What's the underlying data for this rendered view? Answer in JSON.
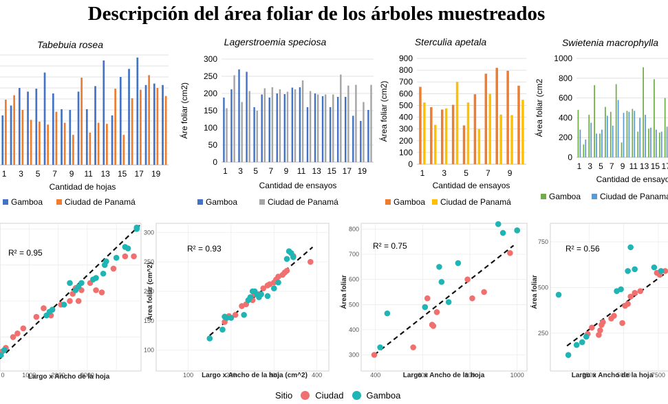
{
  "title": "Descripción del área foliar de los árboles muestreados",
  "colors": {
    "gamboa_blue": "#4472C4",
    "panama_orange": "#ED7D31",
    "panama_gray": "#A5A5A5",
    "panama_yellow": "#FFC000",
    "gamboa_green": "#70AD47",
    "panama_lightblue": "#5B9BD5",
    "ciudad_red": "#F07070",
    "gamboa_teal": "#1FB5B5"
  },
  "legend": {
    "title": "Sitio",
    "items": [
      "Ciudad",
      "Gamboa"
    ]
  },
  "chart_data": [
    {
      "type": "bar",
      "title": "Tabebuia rosea",
      "xlabel": "Cantidad de hojas",
      "ylabel": "",
      "ylim": [
        0,
        300
      ],
      "yticks": [],
      "xticklabels": [
        "1",
        "3",
        "5",
        "7",
        "9",
        "11",
        "13",
        "15",
        "17",
        "19"
      ],
      "categories": [
        1,
        2,
        3,
        4,
        5,
        6,
        7,
        8,
        9,
        10,
        11,
        12,
        13,
        14,
        15,
        16,
        17,
        18,
        19,
        20
      ],
      "series": [
        {
          "name": "Gamboa",
          "values": [
            135,
            162,
            210,
            200,
            208,
            252,
            195,
            152,
            150,
            200,
            152,
            215,
            285,
            135,
            240,
            262,
            293,
            218,
            222,
            218
          ]
        },
        {
          "name": "Ciudad de Panamá",
          "values": [
            178,
            190,
            150,
            123,
            118,
            110,
            145,
            115,
            82,
            238,
            88,
            115,
            112,
            208,
            82,
            182,
            205,
            245,
            210,
            188
          ]
        }
      ]
    },
    {
      "type": "bar",
      "title": "Lagerstroemia speciosa",
      "xlabel": "Cantidad de ensayos",
      "ylabel": "Áre foliar (cm2)",
      "ylim": [
        0,
        300
      ],
      "yticks": [
        0,
        50,
        100,
        150,
        200,
        250,
        300
      ],
      "xticklabels": [
        "1",
        "3",
        "5",
        "7",
        "9",
        "11",
        "13",
        "15",
        "17",
        "19"
      ],
      "categories": [
        1,
        2,
        3,
        4,
        5,
        6,
        7,
        8,
        9,
        10,
        11,
        12,
        13,
        14,
        15,
        16,
        17,
        18,
        19,
        20
      ],
      "series": [
        {
          "name": "Gamboa",
          "values": [
            188,
            212,
            270,
            263,
            160,
            197,
            188,
            200,
            198,
            217,
            218,
            160,
            200,
            192,
            160,
            190,
            190,
            135,
            120,
            152
          ]
        },
        {
          "name": "Ciudad de Panamá",
          "values": [
            157,
            253,
            175,
            207,
            150,
            215,
            218,
            212,
            205,
            212,
            238,
            207,
            197,
            197,
            197,
            255,
            223,
            225,
            175,
            225
          ]
        }
      ]
    },
    {
      "type": "bar",
      "title": "Sterculia apetala",
      "xlabel": "Cantidad de ensayos",
      "ylabel": "Área foliar (cm2)",
      "ylim": [
        0,
        900
      ],
      "yticks": [
        0,
        100,
        200,
        300,
        400,
        500,
        600,
        700,
        800,
        900
      ],
      "xticklabels": [
        "1",
        "3",
        "5",
        "7",
        "9"
      ],
      "categories": [
        1,
        2,
        3,
        4,
        5,
        6,
        7,
        8,
        9,
        10
      ],
      "series": [
        {
          "name": "Gamboa",
          "values": [
            658,
            485,
            465,
            505,
            330,
            595,
            770,
            820,
            795,
            668
          ]
        },
        {
          "name": "Ciudad de Panamá",
          "values": [
            525,
            335,
            475,
            700,
            525,
            300,
            598,
            422,
            418,
            548
          ]
        }
      ]
    },
    {
      "type": "bar",
      "title": "Swietenia macrophylla",
      "xlabel": "Cantidad de ensayo",
      "ylabel": "Área foliar (cm2",
      "ylim": [
        0,
        1000
      ],
      "yticks": [
        0,
        200,
        400,
        600,
        800,
        1000
      ],
      "xticklabels": [
        "1",
        "3",
        "5",
        "7",
        "9",
        "11",
        "13",
        "15",
        "17"
      ],
      "categories": [
        1,
        2,
        3,
        4,
        5,
        6,
        7,
        8,
        9,
        10,
        11,
        12,
        13,
        14,
        15,
        16,
        17,
        18
      ],
      "series": [
        {
          "name": "Gamboa",
          "values": [
            480,
            130,
            430,
            730,
            240,
            510,
            460,
            740,
            150,
            470,
            490,
            260,
            910,
            290,
            790,
            250,
            600,
            520
          ]
        },
        {
          "name": "Ciudad de Panamá",
          "values": [
            280,
            180,
            350,
            240,
            280,
            420,
            320,
            580,
            450,
            460,
            470,
            400,
            430,
            300,
            280,
            260,
            310,
            290
          ]
        }
      ]
    },
    {
      "type": "scatter",
      "annotation": "R² = 0.95",
      "xlabel": "Largo x Ancho de la hoja",
      "ylabel": "",
      "xlim": [
        0,
        4800
      ],
      "ylim": [
        120,
        305
      ],
      "xticks": [],
      "xticklabels": [
        "0",
        "1000",
        "2000",
        "3000",
        "4000"
      ],
      "yticks": [],
      "trendline": [
        [
          0,
          120
        ],
        [
          4800,
          305
        ]
      ],
      "series": [
        {
          "name": "Ciudad",
          "points": [
            [
              80,
              130
            ],
            [
              200,
              135
            ],
            [
              450,
              150
            ],
            [
              600,
              155
            ],
            [
              800,
              162
            ],
            [
              1250,
              178
            ],
            [
              1500,
              190
            ],
            [
              1750,
              180
            ],
            [
              2100,
              195
            ],
            [
              2400,
              200
            ],
            [
              2500,
              210
            ],
            [
              2600,
              218
            ],
            [
              2700,
              200
            ],
            [
              2800,
              215
            ],
            [
              3100,
              225
            ],
            [
              3300,
              215
            ],
            [
              3500,
              212
            ],
            [
              3900,
              245
            ],
            [
              4300,
              262
            ],
            [
              4600,
              262
            ]
          ]
        },
        {
          "name": "Gamboa",
          "points": [
            [
              30,
              125
            ],
            [
              150,
              132
            ],
            [
              1600,
              180
            ],
            [
              1700,
              185
            ],
            [
              1800,
              188
            ],
            [
              2200,
              195
            ],
            [
              2400,
              225
            ],
            [
              2600,
              215
            ],
            [
              2700,
              220
            ],
            [
              2800,
              225
            ],
            [
              3200,
              230
            ],
            [
              3300,
              232
            ],
            [
              3550,
              238
            ],
            [
              3600,
              250
            ],
            [
              3650,
              255
            ],
            [
              4000,
              260
            ],
            [
              4300,
              275
            ],
            [
              4400,
              273
            ],
            [
              4700,
              302
            ],
            [
              4700,
              300
            ]
          ]
        }
      ]
    },
    {
      "type": "scatter",
      "annotation": "R² = 0.93",
      "xlabel": "Largo x Ancho de la hoja (cm^2)",
      "ylabel": "Área foliar (cm^2)",
      "xlim": [
        75,
        415
      ],
      "ylim": [
        88,
        312
      ],
      "xticks": [
        100,
        200,
        300,
        400
      ],
      "yticks": [
        100,
        150,
        200,
        250,
        300
      ],
      "trendline": [
        [
          150,
          125
        ],
        [
          390,
          275
        ]
      ],
      "series": [
        {
          "name": "Ciudad",
          "points": [
            [
              185,
              148
            ],
            [
              195,
              158
            ],
            [
              210,
              160
            ],
            [
              225,
              175
            ],
            [
              235,
              178
            ],
            [
              245,
              190
            ],
            [
              255,
              195
            ],
            [
              265,
              195
            ],
            [
              275,
              205
            ],
            [
              285,
              210
            ],
            [
              290,
              212
            ],
            [
              300,
              215
            ],
            [
              305,
              220
            ],
            [
              310,
              225
            ],
            [
              320,
              228
            ],
            [
              325,
              232
            ],
            [
              330,
              235
            ],
            [
              345,
              260
            ],
            [
              385,
              250
            ],
            [
              250,
              185
            ]
          ]
        },
        {
          "name": "Gamboa",
          "points": [
            [
              150,
              120
            ],
            [
              180,
              135
            ],
            [
              185,
              157
            ],
            [
              190,
              155
            ],
            [
              200,
              155
            ],
            [
              230,
              160
            ],
            [
              240,
              185
            ],
            [
              245,
              190
            ],
            [
              250,
              200
            ],
            [
              255,
              200
            ],
            [
              260,
              195
            ],
            [
              265,
              190
            ],
            [
              270,
              195
            ],
            [
              285,
              192
            ],
            [
              300,
              205
            ],
            [
              310,
              215
            ],
            [
              330,
              255
            ],
            [
              335,
              268
            ],
            [
              340,
              265
            ],
            [
              345,
              258
            ]
          ]
        }
      ]
    },
    {
      "type": "scatter",
      "annotation": "R² = 0.75",
      "xlabel": "Largo x Ancho de la hoja",
      "ylabel": "Área foliar",
      "xlim": [
        360,
        1030
      ],
      "ylim": [
        285,
        815
      ],
      "xticks": [
        400,
        600,
        800,
        1000
      ],
      "yticks": [
        300,
        400,
        500,
        600,
        700,
        800
      ],
      "trendline": [
        [
          395,
          300
        ],
        [
          985,
          735
        ]
      ],
      "series": [
        {
          "name": "Ciudad",
          "points": [
            [
              395,
              300
            ],
            [
              560,
              330
            ],
            [
              610,
              490
            ],
            [
              620,
              525
            ],
            [
              640,
              420
            ],
            [
              645,
              415
            ],
            [
              660,
              470
            ],
            [
              790,
              600
            ],
            [
              810,
              525
            ],
            [
              860,
              550
            ],
            [
              970,
              705
            ],
            [
              1000,
              795
            ]
          ]
        },
        {
          "name": "Gamboa",
          "points": [
            [
              420,
              330
            ],
            [
              450,
              465
            ],
            [
              610,
              490
            ],
            [
              670,
              650
            ],
            [
              680,
              590
            ],
            [
              710,
              510
            ],
            [
              750,
              665
            ],
            [
              920,
              820
            ],
            [
              940,
              785
            ],
            [
              1000,
              795
            ]
          ]
        }
      ]
    },
    {
      "type": "scatter",
      "annotation": "R² = 0.56",
      "xlabel": "Largo x Ancho de la hoja",
      "ylabel": "Área foliar",
      "xlim": [
        0,
        8400
      ],
      "ylim": [
        110,
        840
      ],
      "xticks": [
        2500,
        5000,
        7500
      ],
      "yticks": [
        250,
        500,
        750
      ],
      "trendline": [
        [
          900,
          180
        ],
        [
          8400,
          600
        ]
      ],
      "series": [
        {
          "name": "Ciudad",
          "points": [
            [
              2400,
              245
            ],
            [
              2700,
              280
            ],
            [
              3200,
              240
            ],
            [
              3300,
              265
            ],
            [
              3400,
              295
            ],
            [
              3500,
              310
            ],
            [
              4100,
              330
            ],
            [
              4300,
              345
            ],
            [
              4900,
              305
            ],
            [
              5100,
              400
            ],
            [
              5300,
              410
            ],
            [
              5500,
              450
            ],
            [
              5800,
              470
            ],
            [
              6200,
              480
            ],
            [
              7400,
              580
            ],
            [
              7600,
              570
            ],
            [
              8000,
              590
            ]
          ]
        },
        {
          "name": "Gamboa",
          "points": [
            [
              300,
              460
            ],
            [
              1000,
              130
            ],
            [
              1600,
              185
            ],
            [
              2000,
              200
            ],
            [
              2300,
              230
            ],
            [
              4500,
              480
            ],
            [
              4800,
              490
            ],
            [
              5300,
              590
            ],
            [
              5500,
              720
            ],
            [
              5800,
              600
            ],
            [
              7200,
              610
            ],
            [
              7700,
              590
            ]
          ]
        }
      ]
    }
  ]
}
